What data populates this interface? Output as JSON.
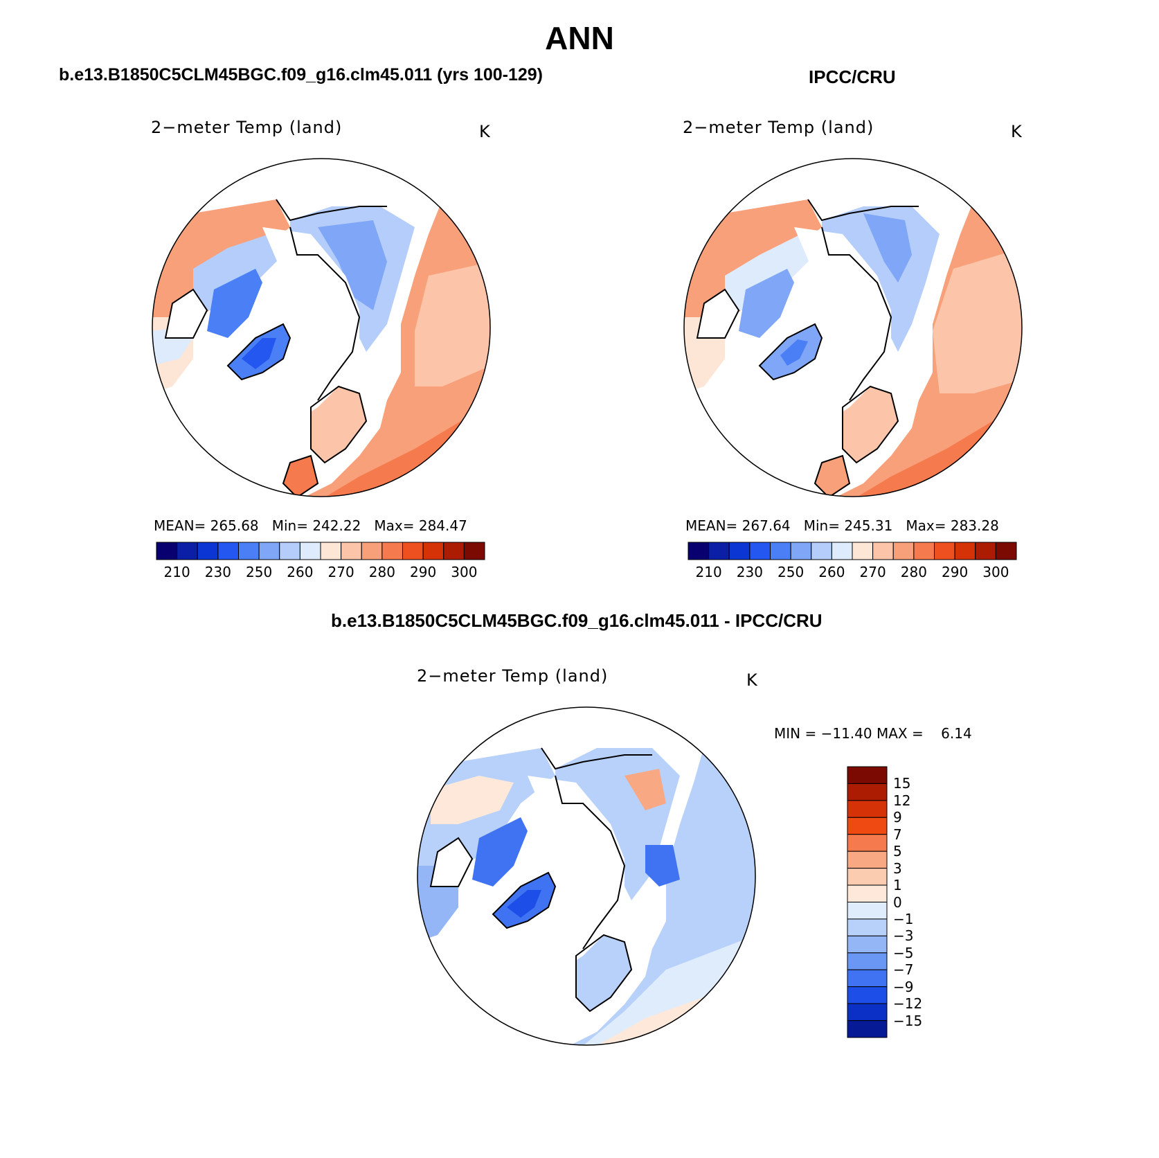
{
  "figure": {
    "title": "ANN",
    "left_panel_title": "b.e13.B1850C5CLM45BGC.f09_g16.clm45.011 (yrs 100-129)",
    "right_panel_title": "IPCC/CRU",
    "diff_panel_title": "b.e13.B1850C5CLM45BGC.f09_g16.clm45.011 - IPCC/CRU"
  },
  "panels": {
    "model": {
      "variable": "2−meter Temp (land)",
      "units": "K",
      "stats": {
        "mean_label": "MEAN=",
        "mean": "265.68",
        "min_label": "Min=",
        "min": "242.22",
        "max_label": "Max=",
        "max": "284.47"
      }
    },
    "obs": {
      "variable": "2−meter Temp (land)",
      "units": "K",
      "stats": {
        "mean_label": "MEAN=",
        "mean": "267.64",
        "min_label": "Min=",
        "min": "245.31",
        "max_label": "Max=",
        "max": "283.28"
      }
    },
    "diff": {
      "variable": "2−meter Temp (land)",
      "units": "K",
      "minmax_text": "MIN = −11.40 MAX =    6.14"
    }
  },
  "colorbars": {
    "abs": {
      "colors": [
        "#08006e",
        "#0a1fa6",
        "#0b36d4",
        "#2456f0",
        "#4a7ff5",
        "#7fa6f7",
        "#b4cdfa",
        "#ddebfc",
        "#fde6d5",
        "#fcc5aa",
        "#f8a07a",
        "#f57a4e",
        "#ef5020",
        "#d63208",
        "#ab1c02",
        "#7a0a02"
      ],
      "labels": [
        "210",
        "230",
        "250",
        "260",
        "270",
        "280",
        "290",
        "300"
      ]
    },
    "diff": {
      "colors": [
        "#7a0a02",
        "#ab1c02",
        "#d63208",
        "#ef4a12",
        "#f57a4e",
        "#f8a883",
        "#fcccb0",
        "#fde8da",
        "#deecfc",
        "#b8d1fa",
        "#94b6f7",
        "#6a97f3",
        "#3f73f2",
        "#1e4ee8",
        "#0b30c6",
        "#071a96"
      ],
      "labels": [
        "15",
        "12",
        "9",
        "7",
        "5",
        "3",
        "1",
        "0",
        "−1",
        "−3",
        "−5",
        "−7",
        "−9",
        "−12",
        "−15"
      ]
    }
  }
}
